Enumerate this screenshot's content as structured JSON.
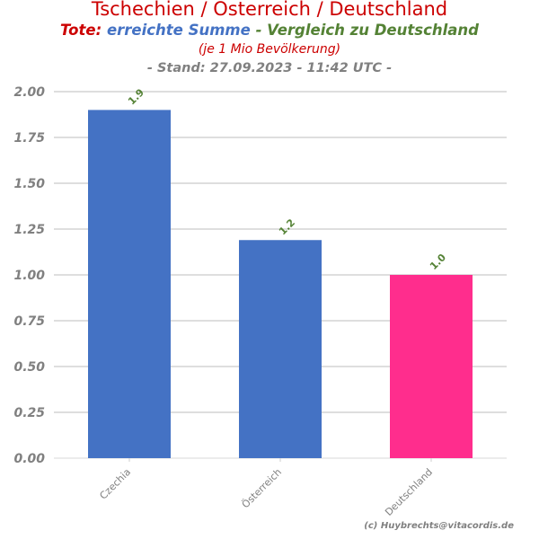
{
  "header": {
    "title": "Tschechien / Österreich / Deutschland",
    "subtitle_part1": "Tote:",
    "subtitle_part2": "erreichte Summe",
    "subtitle_part3": "- Vergleich zu Deutschland",
    "note": "(je 1 Mio Bevölkerung)",
    "stand": "- Stand: 27.09.2023 - 11:42 UTC -"
  },
  "footer": {
    "copyright": "(c) Huybrechts@vitacordis.de"
  },
  "chart_data": {
    "type": "bar",
    "categories": [
      "Czechia",
      "Österreich",
      "Deutschland"
    ],
    "values": [
      1.9,
      1.19,
      1.0
    ],
    "data_labels": [
      "1.9",
      "1.2",
      "1.0"
    ],
    "bar_colors": [
      "#4472c4",
      "#4472c4",
      "#ff2d8d"
    ],
    "ylim": [
      0,
      2.0
    ],
    "yticks": [
      "0.00",
      "0.25",
      "0.50",
      "0.75",
      "1.00",
      "1.25",
      "1.50",
      "1.75",
      "2.00"
    ],
    "grid": true,
    "tick_color": "#808080",
    "label_color": "#548235"
  }
}
